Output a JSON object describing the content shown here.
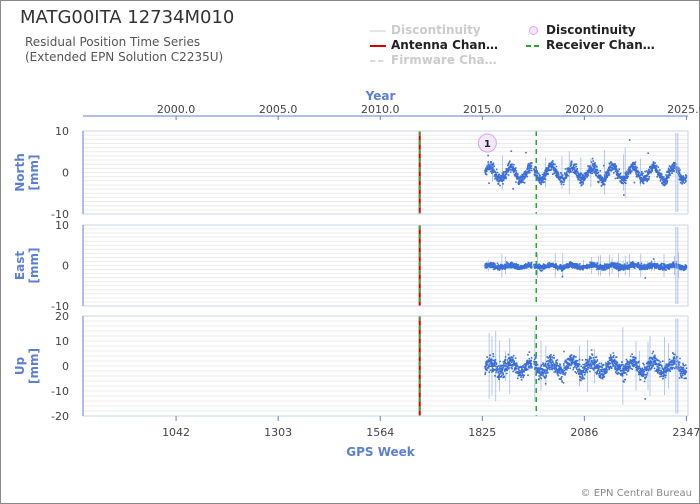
{
  "header": {
    "title": "MATG00ITA 12734M010",
    "subtitle_line1": "Residual Position Time Series",
    "subtitle_line2": "(Extended EPN Solution C2235U)",
    "credit": "© EPN Central Bureau"
  },
  "legend": [
    {
      "label": "Discontinuity",
      "style": "line",
      "color": "#cccccc",
      "dim": true
    },
    {
      "label": "Discontinuity",
      "style": "circle",
      "color": "#d9a6f0",
      "dim": false
    },
    {
      "label": "Antenna Chan…",
      "style": "solid",
      "color": "#d40000",
      "dim": false
    },
    {
      "label": "Receiver Chan…",
      "style": "dashed",
      "color": "#22aa22",
      "dim": false
    },
    {
      "label": "Firmware Cha…",
      "style": "dashed-light",
      "color": "#cccccc",
      "dim": true
    }
  ],
  "chart_data": {
    "type": "scatter",
    "top_axis": {
      "label": "Year",
      "ticks": [
        "2000.0",
        "2005.0",
        "2010.0",
        "2015.0",
        "2020.0",
        "2025.0"
      ],
      "tick_values": [
        1042,
        1303,
        1564,
        1825,
        2086,
        2347
      ],
      "range": [
        804,
        2351
      ]
    },
    "bottom_axis": {
      "label": "GPS Week",
      "ticks": [
        "1042",
        "1303",
        "1564",
        "1825",
        "2086",
        "2347"
      ],
      "tick_values": [
        1042,
        1303,
        1564,
        1825,
        2086,
        2347
      ],
      "range": [
        804,
        2351
      ]
    },
    "data_span": [
      1830,
      2345
    ],
    "antenna_change_week": 1665,
    "receiver_change_week": 1963,
    "discontinuity": {
      "label": "1",
      "week": 1838
    },
    "gap_weeks": [
      1950,
      1955
    ],
    "panels": [
      {
        "label": "North [mm]",
        "ylim": [
          -10,
          10
        ],
        "ticks": [
          "10",
          "0",
          "-10"
        ],
        "tick_values": [
          10,
          0,
          -10
        ],
        "spread": 1.6,
        "seasonal": 1.6
      },
      {
        "label": "East [mm]",
        "ylim": [
          -10,
          10
        ],
        "ticks": [
          "10",
          "0",
          "-10"
        ],
        "tick_values": [
          10,
          0,
          -10
        ],
        "spread": 0.8,
        "seasonal": 0.3
      },
      {
        "label": "Up [mm]",
        "ylim": [
          -20,
          20
        ],
        "ticks": [
          "20",
          "10",
          "0",
          "-10",
          "-20"
        ],
        "tick_values": [
          20,
          10,
          0,
          -10,
          -20
        ],
        "spread": 4.0,
        "seasonal": 2.0
      }
    ],
    "point_color": "#3a6fd8",
    "axis_color": "#5b7fd6"
  }
}
